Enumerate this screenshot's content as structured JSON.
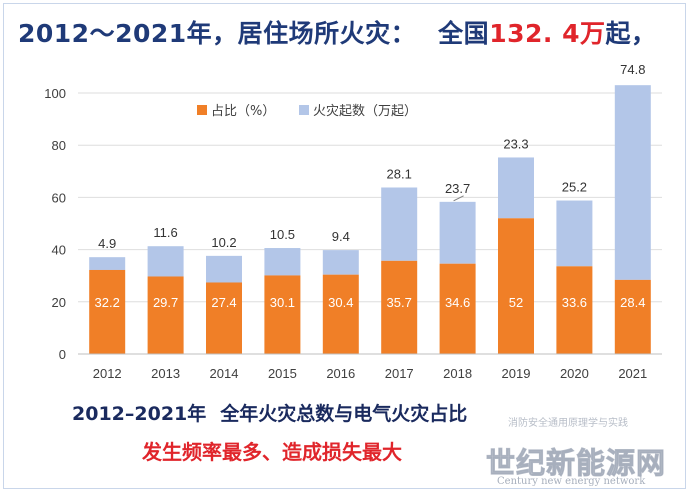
{
  "headline": {
    "prefix": "2012～2021年，居住场所火灾：",
    "national_label": "全国",
    "total_value": "132. 4万",
    "suffix": "起，"
  },
  "chart_data": {
    "type": "bar",
    "stacked": true,
    "categories": [
      "2012",
      "2013",
      "2014",
      "2015",
      "2016",
      "2017",
      "2018",
      "2019",
      "2020",
      "2021"
    ],
    "series": [
      {
        "name": "占比（%）",
        "color": "#f07f27",
        "values": [
          32.2,
          29.7,
          27.4,
          30.1,
          30.4,
          35.7,
          34.6,
          52,
          33.6,
          28.4
        ]
      },
      {
        "name": "火灾起数（万起）",
        "color": "#b3c6e8",
        "values": [
          4.9,
          11.6,
          10.2,
          10.5,
          9.4,
          28.1,
          23.7,
          23.3,
          25.2,
          74.8
        ]
      }
    ],
    "y_ticks": [
      0,
      20,
      40,
      60,
      80,
      100
    ],
    "ylim": [
      0,
      100
    ],
    "grid": true,
    "legend_position": "top-left",
    "title": "",
    "xlabel": "",
    "ylabel": ""
  },
  "subtitle": {
    "part1": "2012–2021年",
    "part2": "全年火灾总数与电气火灾占比"
  },
  "tagline": "发生频率最多、造成损失最大",
  "watermark": {
    "small_text": "消防安全通用原理学与实践",
    "logo_text": "世纪新能源网",
    "english_text": "Century new energy network"
  }
}
